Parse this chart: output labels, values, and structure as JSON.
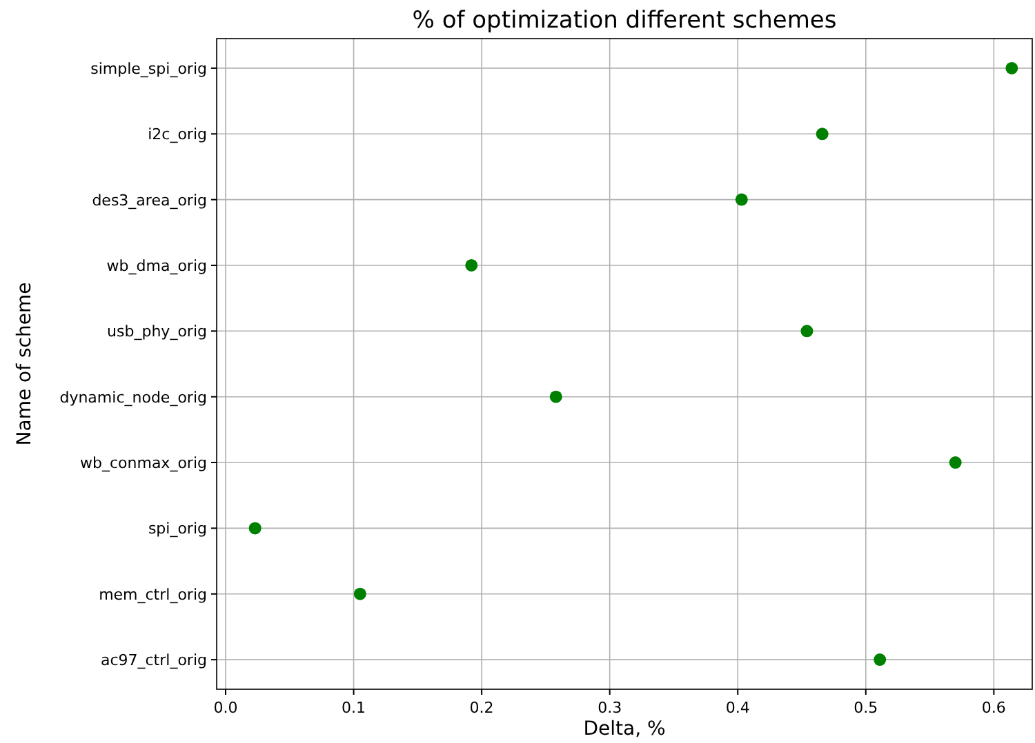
{
  "chart_data": {
    "type": "scatter",
    "title": "% of optimization different schemes",
    "xlabel": "Delta, %",
    "ylabel": "Name of scheme",
    "orientation": "horizontal",
    "categories": [
      "simple_spi_orig",
      "i2c_orig",
      "des3_area_orig",
      "wb_dma_orig",
      "usb_phy_orig",
      "dynamic_node_orig",
      "wb_conmax_orig",
      "spi_orig",
      "mem_ctrl_orig",
      "ac97_ctrl_orig"
    ],
    "values": [
      0.614,
      0.466,
      0.403,
      0.192,
      0.454,
      0.258,
      0.57,
      0.023,
      0.105,
      0.511
    ],
    "color": "#008000",
    "marker": "circle",
    "grid": true,
    "xlim": [
      -0.007,
      0.63
    ],
    "xticks": [
      {
        "value": 0,
        "label": "0.0"
      },
      0.1,
      0.2,
      0.3,
      0.4,
      0.5,
      0.6
    ]
  }
}
